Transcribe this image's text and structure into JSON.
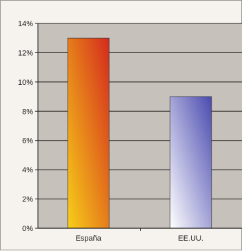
{
  "chart_data": {
    "type": "bar",
    "categories": [
      "España",
      "EE.UU."
    ],
    "values": [
      13,
      9
    ],
    "ylim": [
      0,
      14
    ],
    "yticks": [
      "0%",
      "2%",
      "4%",
      "6%",
      "8%",
      "10%",
      "12%",
      "14%"
    ],
    "grid": true,
    "legend": "none",
    "colors": {
      "plot_bg": "#c7c1bb",
      "bar1_top": "#d42a1c",
      "bar1_bottom": "#f7cf1a",
      "bar2_top": "#4a4ab0",
      "bar2_bottom": "#ffffff",
      "grid": "#1a1a1a"
    }
  }
}
